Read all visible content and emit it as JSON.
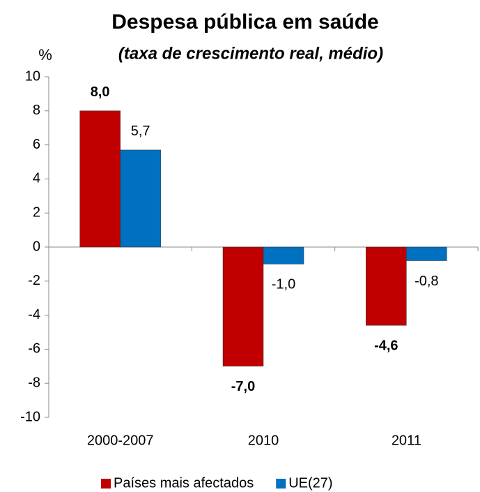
{
  "chart_data": {
    "type": "bar",
    "title": "Despesa pública em saúde",
    "subtitle": "(taxa de crescimento real, médio)",
    "y_label": "%",
    "categories": [
      "2000-2007",
      "2010",
      "2011"
    ],
    "series": [
      {
        "name": "Países mais afectados",
        "color": "#c00000",
        "values": [
          8.0,
          -7.0,
          -4.6
        ],
        "value_labels": [
          "8,0",
          "-7,0",
          "-4,6"
        ]
      },
      {
        "name": "UE(27)",
        "color": "#0070c0",
        "values": [
          5.7,
          -1.0,
          -0.8
        ],
        "value_labels": [
          "5,7",
          "-1,0",
          "-0,8"
        ]
      }
    ],
    "ylim": [
      -10,
      10
    ],
    "yticks": [
      -10,
      -8,
      -6,
      -4,
      -2,
      0,
      2,
      4,
      6,
      8,
      10
    ],
    "legend": "bottom"
  }
}
